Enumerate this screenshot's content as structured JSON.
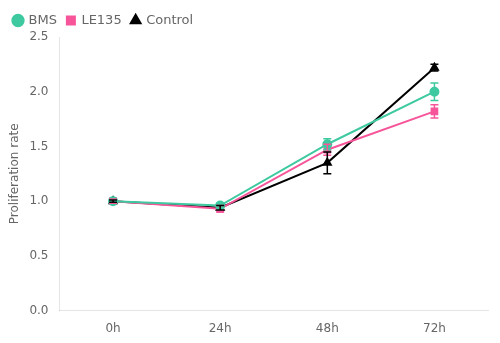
{
  "chart_data": {
    "type": "line",
    "categories": [
      "0h",
      "24h",
      "48h",
      "72h"
    ],
    "series": [
      {
        "name": "BMS",
        "color": "#3ec9a0",
        "marker": "circle",
        "values": [
          1.0,
          0.96,
          1.52,
          2.0
        ],
        "errors": [
          0.02,
          0.02,
          0.05,
          0.08
        ]
      },
      {
        "name": "LE135",
        "color": "#f7559a",
        "marker": "square",
        "values": [
          1.0,
          0.93,
          1.47,
          1.82
        ],
        "errors": [
          0.02,
          0.03,
          0.05,
          0.06
        ]
      },
      {
        "name": "Control",
        "color": "#000000",
        "marker": "triangle",
        "values": [
          1.0,
          0.94,
          1.35,
          2.22
        ],
        "errors": [
          0.01,
          0.02,
          0.1,
          0.03
        ]
      }
    ],
    "ylabel": "Proliferation rate",
    "ylim": [
      0.0,
      2.5
    ],
    "yticks": [
      {
        "value": 0.0,
        "label": "0.0"
      },
      0.5,
      {
        "value": 1.0,
        "label": "1.0"
      },
      1.5,
      {
        "value": 2.0,
        "label": "2.0"
      },
      2.5
    ],
    "legend": "upper left",
    "grid": false
  }
}
